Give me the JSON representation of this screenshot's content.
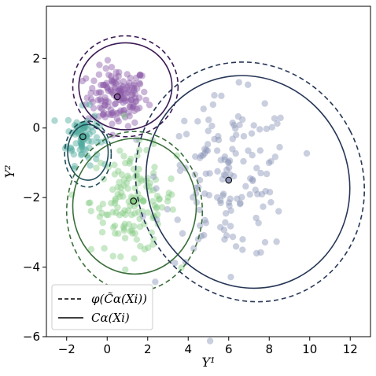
{
  "chart_data": {
    "type": "scatter",
    "title": "",
    "xlabel": "Y¹",
    "ylabel": "Y²",
    "xlim": [
      -3,
      13
    ],
    "ylim": [
      -6,
      3.5
    ],
    "xticks": [
      -2,
      0,
      2,
      4,
      6,
      8,
      10,
      12
    ],
    "xtick_labels": [
      "−2",
      "0",
      "2",
      "4",
      "6",
      "8",
      "10",
      "12"
    ],
    "yticks": [
      -6,
      -4,
      -2,
      0,
      2
    ],
    "ytick_labels": [
      "−6",
      "−4",
      "−2",
      "0",
      "2"
    ],
    "grid": false,
    "legend": {
      "placement": "bottom-left",
      "entries": [
        {
          "label": "φ(C̃α(Xi))",
          "style": "dashed"
        },
        {
          "label": "Cα(Xi)",
          "style": "solid"
        }
      ]
    },
    "groups": [
      {
        "color": "#3b1a55",
        "point_color": "#8c5aa8",
        "center": [
          0.5,
          0.9
        ],
        "spread": [
          0.75,
          0.42
        ],
        "n_points": 150,
        "solid_ellipse": {
          "cx": 0.9,
          "cy": 1.2,
          "rx": 2.3,
          "ry": 1.25,
          "angle": 0
        },
        "dashed_ellipse": {
          "cx": 0.9,
          "cy": 1.2,
          "rx": 2.6,
          "ry": 1.45,
          "angle": 0
        }
      },
      {
        "color": "#1f4e5a",
        "point_color": "#4ca89c",
        "center": [
          -1.2,
          -0.25
        ],
        "spread": [
          0.4,
          0.4
        ],
        "n_points": 80,
        "solid_ellipse": {
          "cx": -0.95,
          "cy": -0.7,
          "rx": 1.0,
          "ry": 0.8,
          "angle": 0
        },
        "dashed_ellipse": {
          "cx": -0.95,
          "cy": -0.75,
          "rx": 1.15,
          "ry": 0.95,
          "angle": 0
        }
      },
      {
        "color": "#3a6f3a",
        "point_color": "#86cc86",
        "center": [
          1.3,
          -2.1
        ],
        "spread": [
          1.05,
          0.75
        ],
        "n_points": 150,
        "solid_ellipse": {
          "cx": 1.35,
          "cy": -2.25,
          "rx": 3.05,
          "ry": 1.95,
          "angle": 0
        },
        "dashed_ellipse": {
          "cx": 1.35,
          "cy": -2.4,
          "rx": 3.35,
          "ry": 2.3,
          "angle": 0
        }
      },
      {
        "color": "#263656",
        "point_color": "#8a95b8",
        "center": [
          6.0,
          -1.5
        ],
        "spread": [
          1.6,
          1.15
        ],
        "n_points": 150,
        "solid_ellipse": {
          "cx": 6.95,
          "cy": -1.55,
          "rx": 4.95,
          "ry": 3.1,
          "angle": -27
        },
        "dashed_ellipse": {
          "cx": 7.05,
          "cy": -1.55,
          "rx": 5.55,
          "ry": 3.5,
          "angle": -27
        }
      }
    ]
  }
}
